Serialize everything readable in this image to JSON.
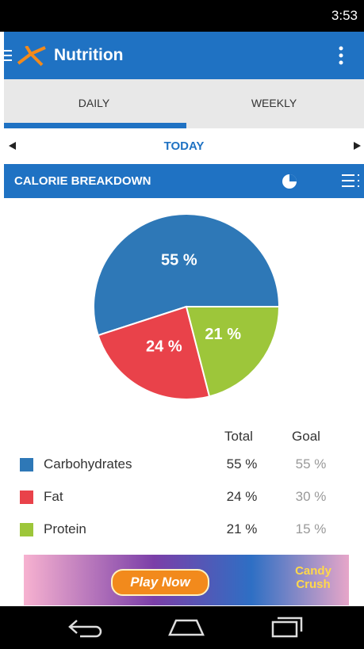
{
  "status_bar": {
    "time": "3:53"
  },
  "app_bar": {
    "title": "Nutrition"
  },
  "tabs": [
    "DAILY",
    "WEEKLY"
  ],
  "date_nav": {
    "label": "TODAY"
  },
  "section": {
    "title": "CALORIE BREAKDOWN"
  },
  "chart_data": {
    "type": "pie",
    "categories": [
      "Carbohydrates",
      "Fat",
      "Protein"
    ],
    "values": [
      55,
      24,
      21
    ],
    "value_labels": [
      "55 %",
      "24 %",
      "21 %"
    ],
    "colors": [
      "#2e78b7",
      "#e9424a",
      "#9dc63a"
    ]
  },
  "table": {
    "header": [
      "Total",
      "Goal"
    ],
    "goals": [
      "55 %",
      "30 %",
      "15 %"
    ]
  },
  "ad": {
    "button": "Play Now",
    "brand": "Candy Crush"
  }
}
